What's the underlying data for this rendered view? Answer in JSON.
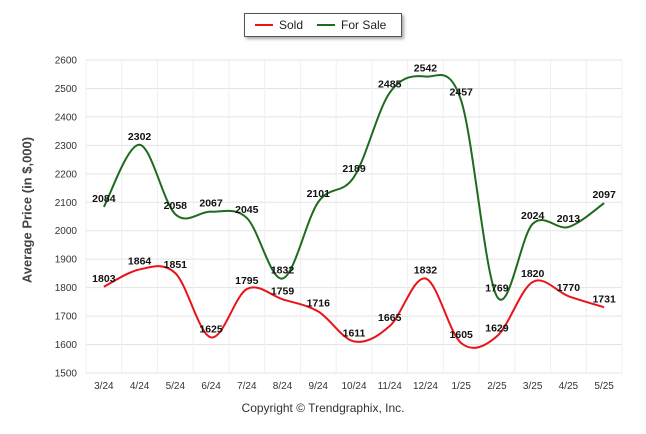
{
  "chart_data": {
    "type": "line",
    "ylabel": "Average Price (in $,000)",
    "xlabel": "",
    "ylim": [
      1500,
      2600
    ],
    "yticks": [
      1500,
      1600,
      1700,
      1800,
      1900,
      2000,
      2100,
      2200,
      2300,
      2400,
      2500,
      2600
    ],
    "grid": true,
    "legend_position": "top-center",
    "categories": [
      "3/24",
      "4/24",
      "5/24",
      "6/24",
      "7/24",
      "8/24",
      "9/24",
      "10/24",
      "11/24",
      "12/24",
      "1/25",
      "2/25",
      "3/25",
      "4/25",
      "5/25"
    ],
    "series": [
      {
        "name": "Sold",
        "color": "#e8141a",
        "values": [
          1803,
          1864,
          1851,
          1625,
          1795,
          1759,
          1716,
          1611,
          1665,
          1832,
          1605,
          1629,
          1820,
          1770,
          1731
        ]
      },
      {
        "name": "For Sale",
        "color": "#1e6b1e",
        "values": [
          2084,
          2302,
          2058,
          2067,
          2045,
          1832,
          2101,
          2189,
          2485,
          2542,
          2457,
          1769,
          2024,
          2013,
          2097
        ]
      }
    ]
  },
  "footer": {
    "credit": "Copyright © Trendgraphix, Inc."
  }
}
